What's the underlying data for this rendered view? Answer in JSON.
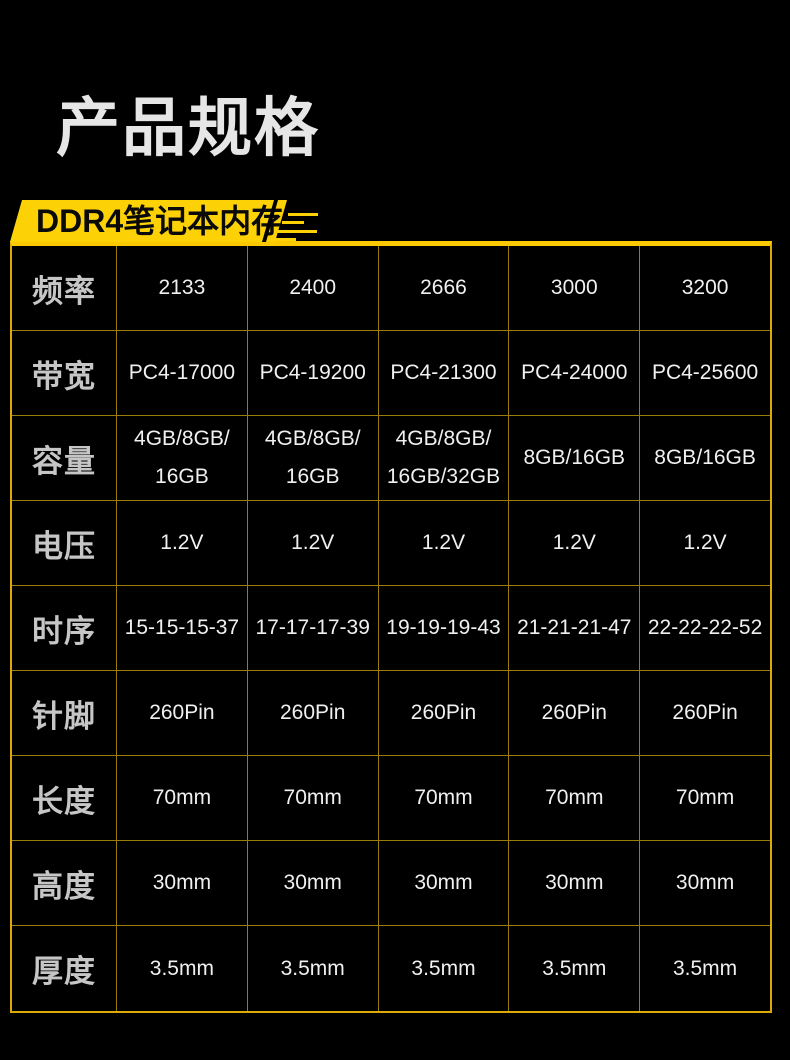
{
  "page": {
    "title": "产品规格"
  },
  "banner": {
    "label": "DDR4笔记本内存"
  },
  "colors": {
    "background": "#000000",
    "banner_yellow": "#FCD207",
    "top_border": "#FCC800",
    "outer_border": "#DCAA06",
    "grid_line": "#9A7D08",
    "title_text": "#E6E6E6",
    "header_text": "#C6C6C6",
    "cell_text": "#F0F0F0",
    "banner_text": "#0A0A0A"
  },
  "table": {
    "rows": [
      {
        "label": "频率",
        "values": [
          "2133",
          "2400",
          "2666",
          "3000",
          "3200"
        ]
      },
      {
        "label": "带宽",
        "values": [
          "PC4-17000",
          "PC4-19200",
          "PC4-21300",
          "PC4-24000",
          "PC4-25600"
        ]
      },
      {
        "label": "容量",
        "values": [
          "4GB/8GB/\n16GB",
          "4GB/8GB/\n16GB",
          "4GB/8GB/\n16GB/32GB",
          "8GB/16GB",
          "8GB/16GB"
        ]
      },
      {
        "label": "电压",
        "values": [
          "1.2V",
          "1.2V",
          "1.2V",
          "1.2V",
          "1.2V"
        ]
      },
      {
        "label": "时序",
        "values": [
          "15-15-15-37",
          "17-17-17-39",
          "19-19-19-43",
          "21-21-21-47",
          "22-22-22-52"
        ]
      },
      {
        "label": "针脚",
        "values": [
          "260Pin",
          "260Pin",
          "260Pin",
          "260Pin",
          "260Pin"
        ]
      },
      {
        "label": "长度",
        "values": [
          "70mm",
          "70mm",
          "70mm",
          "70mm",
          "70mm"
        ]
      },
      {
        "label": "高度",
        "values": [
          "30mm",
          "30mm",
          "30mm",
          "30mm",
          "30mm"
        ]
      },
      {
        "label": "厚度",
        "values": [
          "3.5mm",
          "3.5mm",
          "3.5mm",
          "3.5mm",
          "3.5mm"
        ]
      }
    ]
  }
}
